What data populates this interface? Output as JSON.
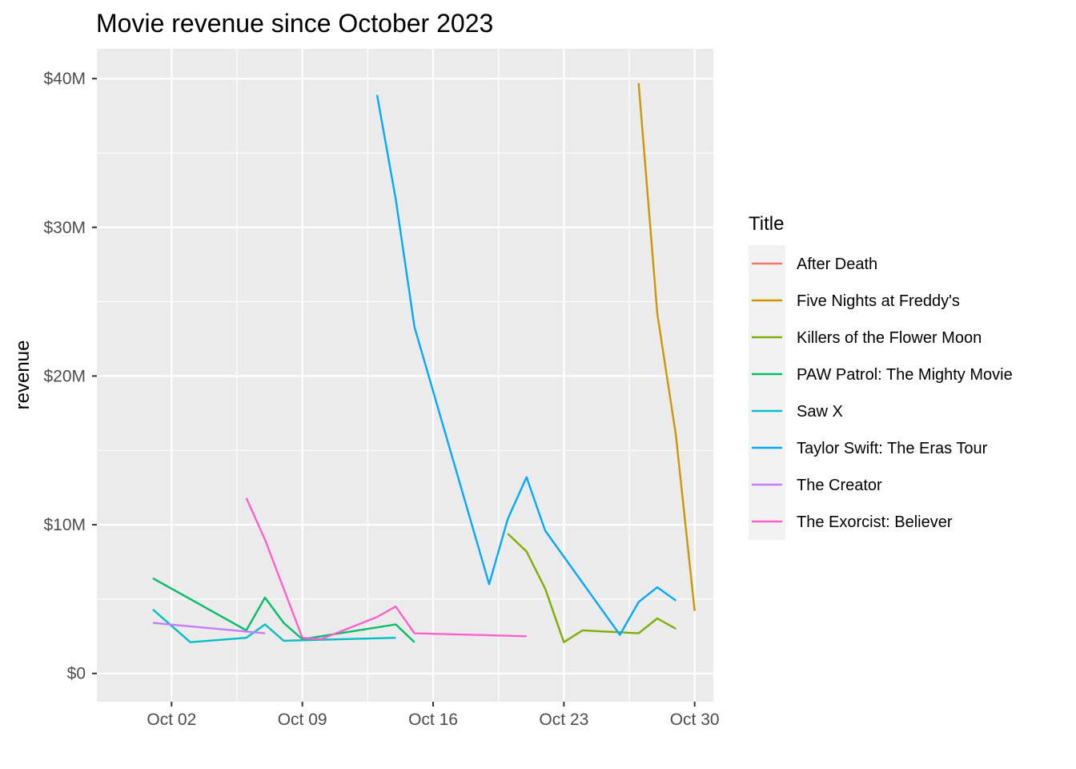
{
  "chart_data": {
    "type": "line",
    "title": "Movie revenue since October 2023",
    "xlabel": "",
    "ylabel": "revenue",
    "x_axis_type": "date",
    "xlim": [
      "2023-09-28",
      "2023-10-31"
    ],
    "x_ticks": [
      {
        "date": "2023-10-02",
        "label": "Oct 02"
      },
      {
        "date": "2023-10-09",
        "label": "Oct 09"
      },
      {
        "date": "2023-10-16",
        "label": "Oct 16"
      },
      {
        "date": "2023-10-23",
        "label": "Oct 23"
      },
      {
        "date": "2023-10-30",
        "label": "Oct 30"
      }
    ],
    "ylim": [
      -1900000,
      42000000
    ],
    "y_ticks": [
      {
        "value": 0,
        "label": "$0"
      },
      {
        "value": 10000000,
        "label": "$10M"
      },
      {
        "value": 20000000,
        "label": "$20M"
      },
      {
        "value": 30000000,
        "label": "$30M"
      },
      {
        "value": 40000000,
        "label": "$40M"
      }
    ],
    "grid": true,
    "legend_title": "Title",
    "legend_position": "right",
    "series": [
      {
        "name": "After Death",
        "color": "#F8766D",
        "points": []
      },
      {
        "name": "Five Nights at Freddy's",
        "color": "#CD9600",
        "points": [
          [
            "2023-10-27",
            39700000
          ],
          [
            "2023-10-28",
            24200000
          ],
          [
            "2023-10-29",
            16000000
          ],
          [
            "2023-10-30",
            4200000
          ]
        ]
      },
      {
        "name": "Killers of the Flower Moon",
        "color": "#7CAE00",
        "points": [
          [
            "2023-10-20",
            9400000
          ],
          [
            "2023-10-21",
            8200000
          ],
          [
            "2023-10-22",
            5700000
          ],
          [
            "2023-10-23",
            2100000
          ],
          [
            "2023-10-24",
            2900000
          ],
          [
            "2023-10-27",
            2700000
          ],
          [
            "2023-10-28",
            3700000
          ],
          [
            "2023-10-29",
            3000000
          ]
        ]
      },
      {
        "name": "PAW Patrol: The Mighty Movie",
        "color": "#00BE67",
        "points": [
          [
            "2023-10-01",
            6400000
          ],
          [
            "2023-10-06",
            2900000
          ],
          [
            "2023-10-07",
            5100000
          ],
          [
            "2023-10-08",
            3400000
          ],
          [
            "2023-10-09",
            2300000
          ],
          [
            "2023-10-14",
            3300000
          ],
          [
            "2023-10-15",
            2100000
          ]
        ]
      },
      {
        "name": "Saw X",
        "color": "#00BFC4",
        "points": [
          [
            "2023-10-01",
            4300000
          ],
          [
            "2023-10-03",
            2100000
          ],
          [
            "2023-10-06",
            2400000
          ],
          [
            "2023-10-07",
            3300000
          ],
          [
            "2023-10-08",
            2200000
          ],
          [
            "2023-10-14",
            2400000
          ]
        ]
      },
      {
        "name": "Taylor Swift: The Eras Tour",
        "color": "#00A9FF",
        "points": [
          [
            "2023-10-13",
            38900000
          ],
          [
            "2023-10-14",
            31900000
          ],
          [
            "2023-10-15",
            23300000
          ],
          [
            "2023-10-19",
            6000000
          ],
          [
            "2023-10-20",
            10400000
          ],
          [
            "2023-10-21",
            13200000
          ],
          [
            "2023-10-22",
            9600000
          ],
          [
            "2023-10-26",
            2600000
          ],
          [
            "2023-10-27",
            4800000
          ],
          [
            "2023-10-28",
            5800000
          ],
          [
            "2023-10-29",
            4900000
          ]
        ]
      },
      {
        "name": "The Creator",
        "color": "#C77CFF",
        "points": [
          [
            "2023-10-01",
            3400000
          ],
          [
            "2023-10-07",
            2700000
          ]
        ]
      },
      {
        "name": "The Exorcist: Believer",
        "color": "#FF61CC",
        "points": [
          [
            "2023-10-06",
            11800000
          ],
          [
            "2023-10-07",
            9000000
          ],
          [
            "2023-10-09",
            2400000
          ],
          [
            "2023-10-10",
            2300000
          ],
          [
            "2023-10-13",
            3800000
          ],
          [
            "2023-10-14",
            4500000
          ],
          [
            "2023-10-15",
            2700000
          ],
          [
            "2023-10-21",
            2500000
          ]
        ]
      }
    ]
  }
}
